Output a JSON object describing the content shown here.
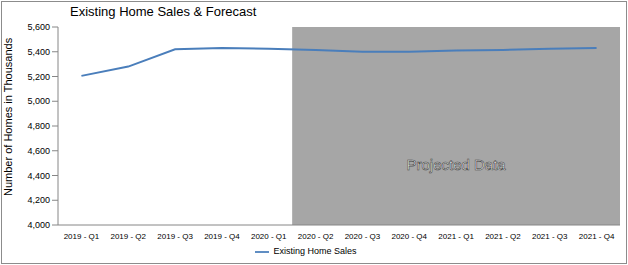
{
  "chart_data": {
    "type": "line",
    "title": "Existing Home Sales & Forecast",
    "y_label": "Number of Homes in Thousands",
    "categories": [
      "2019 - Q1",
      "2019 - Q2",
      "2019 - Q3",
      "2019 - Q4",
      "2020 - Q1",
      "2020 - Q2",
      "2020 - Q3",
      "2020 - Q4",
      "2021 - Q1",
      "2021 - Q2",
      "2021 - Q3",
      "2021 - Q4"
    ],
    "series": [
      {
        "name": "Existing Home Sales",
        "color": "#4a7ebb",
        "values": [
          5205,
          5280,
          5420,
          5430,
          5425,
          5415,
          5400,
          5400,
          5410,
          5415,
          5425,
          5430
        ]
      }
    ],
    "ylim": [
      4000,
      5600
    ],
    "yticks": [
      {
        "value": 4000,
        "label": "4,000"
      },
      {
        "value": 4200,
        "label": "4,200"
      },
      {
        "value": 4400,
        "label": "4,400"
      },
      {
        "value": 4600,
        "label": "4,600"
      },
      {
        "value": 4800,
        "label": "4,800"
      },
      {
        "value": 5000,
        "label": "5,000"
      },
      {
        "value": 5200,
        "label": "5,200"
      },
      {
        "value": 5400,
        "label": "5,400"
      },
      {
        "value": 5600,
        "label": "5,600"
      }
    ],
    "grid": false,
    "legend": "bottom",
    "shaded_region": {
      "label": "Projected Data",
      "from": "2020 - Q2",
      "to": "2021 - Q4",
      "color": "#a6a6a6"
    }
  }
}
